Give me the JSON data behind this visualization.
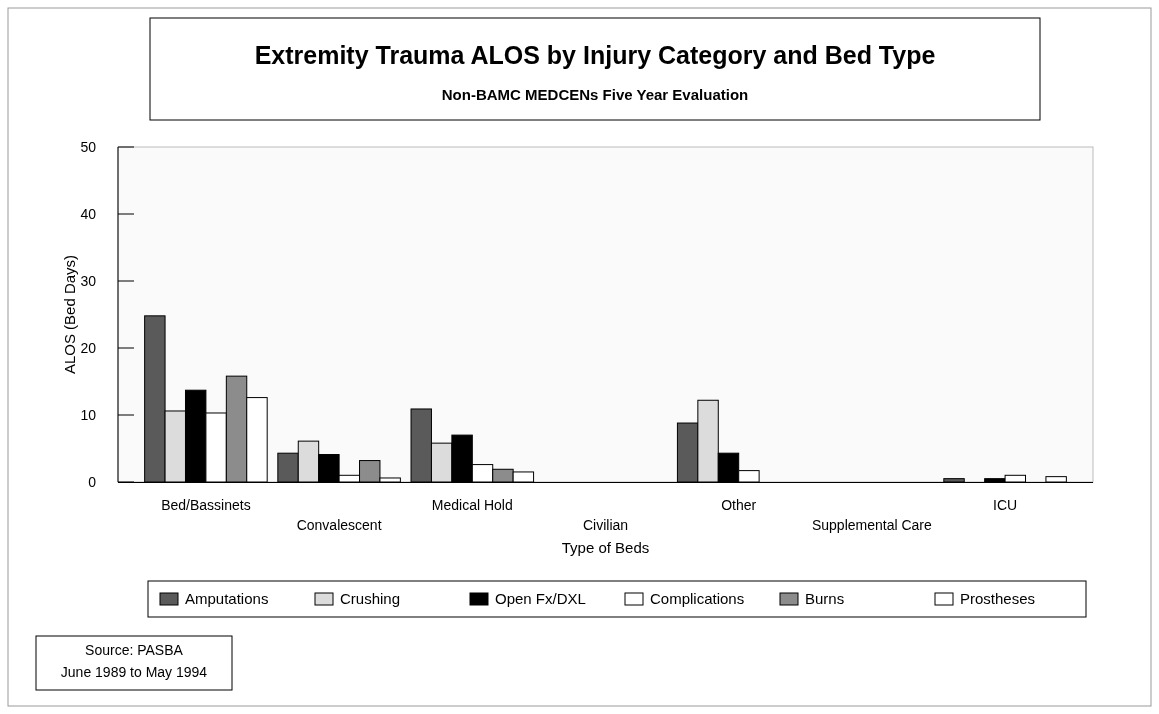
{
  "chart_data": {
    "type": "bar",
    "title": "Extremity Trauma ALOS by Injury Category and Bed Type",
    "subtitle": "Non-BAMC MEDCENs Five Year Evaluation",
    "xlabel": "Type of Beds",
    "ylabel": "ALOS (Bed Days)",
    "categories": [
      "Bed/Bassinets",
      "Convalescent",
      "Medical Hold",
      "Civilian",
      "Other",
      "Supplemental Care",
      "ICU"
    ],
    "series": [
      {
        "name": "Amputations",
        "color": "#5a5a5a",
        "values": [
          24.8,
          4.3,
          10.9,
          0,
          8.8,
          0,
          0.5
        ]
      },
      {
        "name": "Crushing",
        "color": "#dcdcdc",
        "values": [
          10.6,
          6.1,
          5.8,
          0,
          12.2,
          0,
          0
        ]
      },
      {
        "name": "Open Fx/DXL",
        "color": "#000000",
        "values": [
          13.7,
          4.1,
          7.0,
          0,
          4.3,
          0,
          0.5
        ]
      },
      {
        "name": "Complications",
        "color": "#ffffff",
        "values": [
          10.3,
          1.0,
          2.6,
          0,
          1.7,
          0,
          1.0
        ]
      },
      {
        "name": "Burns",
        "color": "#8c8c8c",
        "values": [
          15.8,
          3.2,
          1.9,
          0,
          0,
          0,
          0
        ]
      },
      {
        "name": "Prostheses",
        "color": "#ffffff",
        "values": [
          12.6,
          0.6,
          1.5,
          0,
          0,
          0,
          0.8
        ]
      }
    ],
    "ylim": [
      0,
      50
    ],
    "yticks": [
      0,
      10,
      20,
      30,
      40,
      50
    ],
    "legend": "bottom",
    "annotations": [
      "Source:  PASBA\nJune 1989 to May 1994"
    ]
  }
}
